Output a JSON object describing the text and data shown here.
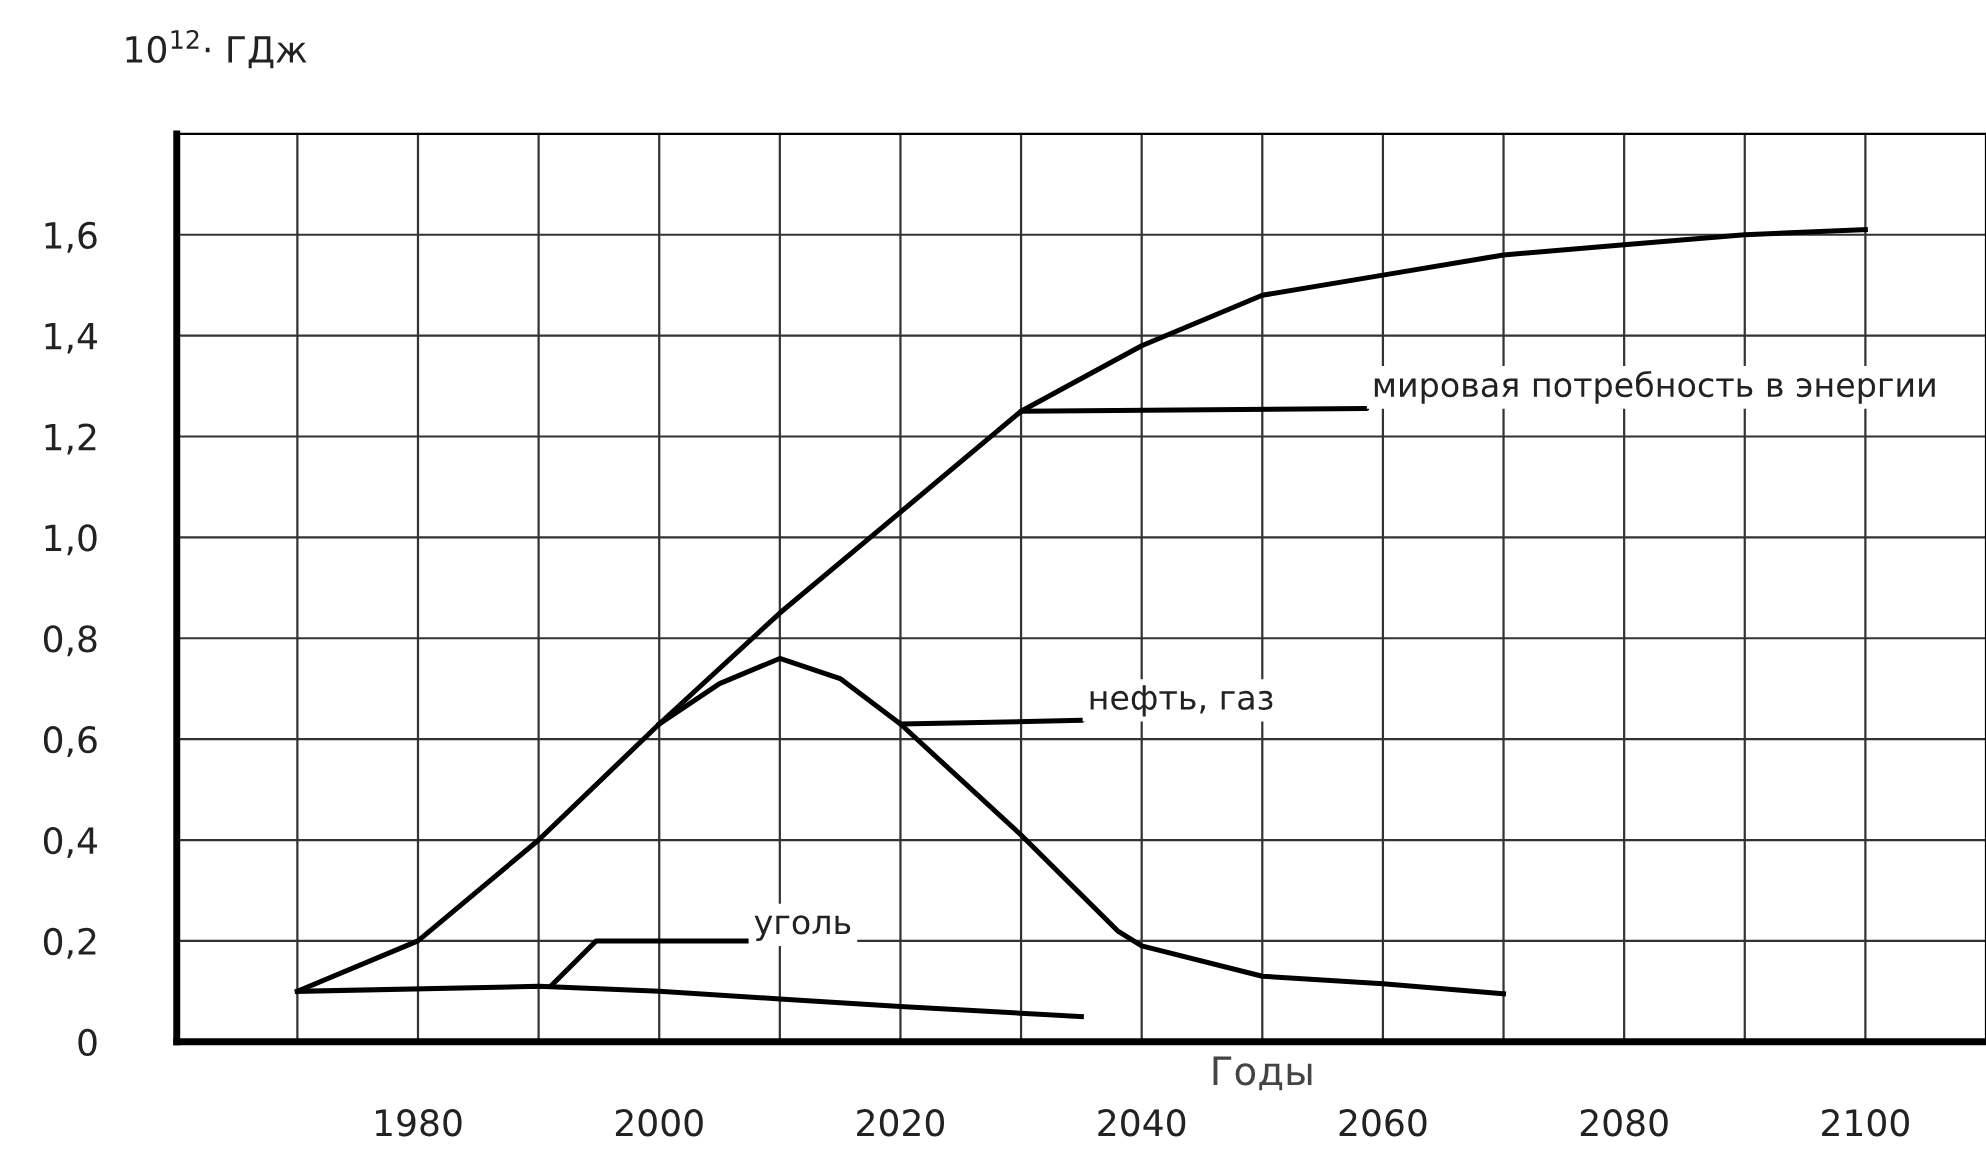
{
  "chart_data": {
    "type": "line",
    "ylabel": "10$^{12}$· ГДж",
    "xlabel": "Годы",
    "series": [
      {
        "color": "#000000",
        "x": [
          1970,
          1980,
          1990,
          2000,
          2010,
          2017.5,
          2020,
          2030,
          2040,
          2050,
          2060,
          2070,
          2080,
          2090,
          2100
        ],
        "values": [
          0.1,
          0.2,
          0.4,
          0.63,
          0.85,
          1.0,
          1.05,
          1.25,
          1.38,
          1.48,
          1.52,
          1.56,
          1.58,
          1.6,
          1.61
        ]
      },
      {
        "color": "#000000",
        "x": [
          2000,
          2005,
          2010,
          2015,
          2020,
          2030,
          2038,
          2040,
          2050,
          2060,
          2070
        ],
        "values": [
          0.63,
          0.71,
          0.76,
          0.72,
          0.63,
          0.41,
          0.22,
          0.19,
          0.13,
          0.115,
          0.095
        ]
      },
      {
        "color": "#000000",
        "x": [
          1970,
          1990,
          2000,
          2010,
          2020,
          2035
        ],
        "values": [
          0.1,
          0.11,
          0.1,
          0.085,
          0.07,
          0.05
        ]
      }
    ],
    "annotations": [
      {
        "text": "мировая потребность в энергии",
        "x": 2030,
        "y": 1.25
      },
      {
        "text": "нефть, газ",
        "x": 2020,
        "y": 0.63
      },
      {
        "text": "уголь",
        "x": 1991,
        "y": 0.11
      }
    ],
    "xlim": [
      1960,
      2110
    ],
    "ylim": [
      0,
      1.8
    ],
    "xticks": [
      {
        "value": 1970,
        "label": null
      },
      1980,
      {
        "value": 1990,
        "label": null
      },
      2000,
      {
        "value": 2010,
        "label": null
      },
      2020,
      {
        "value": 2030,
        "label": null
      },
      2040,
      {
        "value": 2050,
        "label": null
      },
      2060,
      {
        "value": 2070,
        "label": null
      },
      2080,
      {
        "value": 2090,
        "label": null
      },
      2100
    ],
    "yticks": [
      0,
      {
        "value": 0.2,
        "label": "0,2"
      },
      {
        "value": 0.4,
        "label": "0,4"
      },
      {
        "value": 0.6,
        "label": "0,6"
      },
      {
        "value": 0.8,
        "label": "0,8"
      },
      {
        "value": 1.0,
        "label": "1,0"
      },
      {
        "value": 1.2,
        "label": "1,2"
      },
      {
        "value": 1.4,
        "label": "1,4"
      },
      {
        "value": 1.6,
        "label": "1,6"
      }
    ],
    "grid": true,
    "legend": false,
    "line_style": "solid",
    "marker": "none"
  }
}
